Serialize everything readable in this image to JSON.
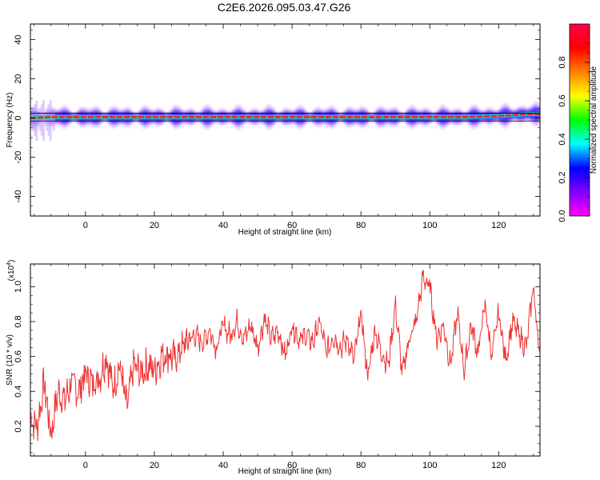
{
  "title": "C2E6.2026.095.03.47.G26",
  "chart_data": [
    {
      "type": "heatmap",
      "xlabel": "Height of straight line (km)",
      "ylabel": "Frequency (Hz)",
      "xlim": [
        -16,
        132
      ],
      "ylim": [
        -50,
        48
      ],
      "xticks": [
        0,
        20,
        40,
        60,
        80,
        100,
        120
      ],
      "yticks": [
        -40,
        -20,
        0,
        20,
        40
      ],
      "colorbar": {
        "label": "Normalized spectral amplitude",
        "range": [
          0,
          1
        ],
        "ticks": [
          0.0,
          0.2,
          0.4,
          0.6,
          0.8
        ],
        "tick_labels": [
          "0.0",
          "0.2",
          "0.4",
          "0.6",
          "0.8"
        ],
        "colormap": [
          "#ff00ff",
          "#8000ff",
          "#0000ff",
          "#00ffff",
          "#00ff00",
          "#ffff00",
          "#ff8000",
          "#ff0000",
          "#ff0050"
        ]
      },
      "ridge": {
        "x": [
          -16,
          -10,
          0,
          20,
          40,
          60,
          80,
          100,
          110,
          120,
          128,
          132
        ],
        "frequency": [
          0,
          0.5,
          0.5,
          0.5,
          0.5,
          0.5,
          0.5,
          0.5,
          0.5,
          1,
          2,
          2
        ]
      },
      "reference_lines": [
        -1.5,
        2.5
      ]
    },
    {
      "type": "line",
      "xlabel": "Height of straight line (km)",
      "ylabel": "SNR (10 * v/v)",
      "y_multiplier": "(x10",
      "y_multiplier_exp": "4",
      "xlim": [
        -16,
        132
      ],
      "ylim": [
        0.03,
        1.13
      ],
      "xticks": [
        0,
        20,
        40,
        60,
        80,
        100,
        120
      ],
      "yticks": [
        0.2,
        0.4,
        0.6,
        0.8,
        1.0
      ],
      "ytick_labels": [
        "0.2",
        "0.4",
        "0.6",
        "0.8",
        "1.0"
      ],
      "color": "#ee3333",
      "series": [
        {
          "x": [
            -16,
            -14,
            -12,
            -10,
            -8,
            -6,
            -4,
            -2,
            0,
            2,
            4,
            6,
            8,
            10,
            12,
            14,
            16,
            18,
            20,
            22,
            24,
            26,
            28,
            30,
            32,
            34,
            36,
            38,
            40,
            42,
            44,
            46,
            48,
            50,
            52,
            54,
            56,
            58,
            60,
            62,
            64,
            66,
            68,
            70,
            72,
            74,
            76,
            78,
            80,
            82,
            84,
            86,
            88,
            90,
            92,
            94,
            96,
            98,
            100,
            102,
            104,
            106,
            108,
            110,
            112,
            114,
            116,
            118,
            120,
            122,
            124,
            126,
            128,
            130,
            132
          ],
          "y": [
            0.25,
            0.2,
            0.45,
            0.15,
            0.4,
            0.35,
            0.45,
            0.4,
            0.5,
            0.45,
            0.48,
            0.6,
            0.42,
            0.55,
            0.3,
            0.55,
            0.5,
            0.55,
            0.52,
            0.6,
            0.62,
            0.58,
            0.65,
            0.7,
            0.72,
            0.68,
            0.75,
            0.65,
            0.78,
            0.72,
            0.8,
            0.7,
            0.78,
            0.65,
            0.82,
            0.7,
            0.75,
            0.6,
            0.78,
            0.7,
            0.72,
            0.68,
            0.8,
            0.62,
            0.72,
            0.65,
            0.7,
            0.58,
            0.85,
            0.48,
            0.75,
            0.62,
            0.55,
            0.9,
            0.5,
            0.7,
            0.8,
            1.05,
            1.0,
            0.7,
            0.78,
            0.55,
            0.85,
            0.52,
            0.78,
            0.62,
            0.9,
            0.6,
            0.85,
            0.58,
            0.8,
            0.72,
            0.65,
            1.0,
            0.6
          ]
        }
      ]
    }
  ]
}
